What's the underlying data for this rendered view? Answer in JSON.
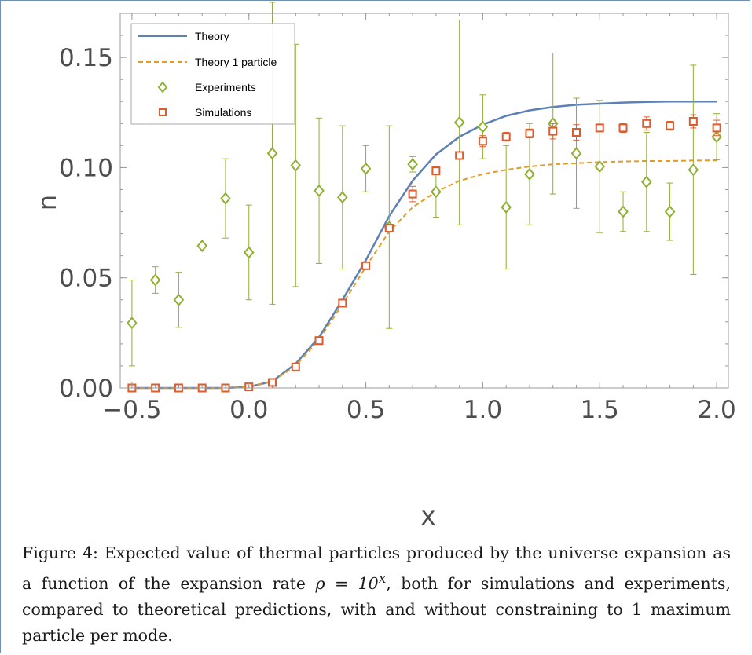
{
  "chart_data": {
    "type": "scatter",
    "xlabel": "x",
    "ylabel": "n",
    "xlim": [
      -0.55,
      2.05
    ],
    "ylim": [
      0.0,
      0.17
    ],
    "x_ticks": [
      "−0.5",
      "0.0",
      "0.5",
      "1.0",
      "1.5",
      "2.0"
    ],
    "x_tick_values": [
      -0.5,
      0.0,
      0.5,
      1.0,
      1.5,
      2.0
    ],
    "y_ticks": [
      "0.00",
      "0.05",
      "0.10",
      "0.15"
    ],
    "y_tick_values": [
      0.0,
      0.05,
      0.1,
      0.15
    ],
    "legend_position": "top-left",
    "grid": false,
    "series": [
      {
        "name": "Theory",
        "kind": "line",
        "style": "solid",
        "color": "#5e81b5",
        "x": [
          -0.5,
          -0.4,
          -0.3,
          -0.2,
          -0.1,
          0.0,
          0.1,
          0.2,
          0.3,
          0.4,
          0.5,
          0.6,
          0.7,
          0.8,
          0.9,
          1.0,
          1.1,
          1.2,
          1.3,
          1.4,
          1.5,
          1.6,
          1.7,
          1.8,
          1.9,
          2.0
        ],
        "y": [
          0.0,
          0.0,
          0.0,
          0.0,
          0.0,
          0.0005,
          0.003,
          0.011,
          0.023,
          0.04,
          0.058,
          0.078,
          0.094,
          0.106,
          0.114,
          0.1195,
          0.1235,
          0.126,
          0.1275,
          0.1285,
          0.129,
          0.1295,
          0.1298,
          0.13,
          0.13,
          0.13
        ]
      },
      {
        "name": "Theory 1 particle",
        "kind": "line",
        "style": "dashed",
        "color": "#e19c24",
        "x": [
          -0.5,
          -0.4,
          -0.3,
          -0.2,
          -0.1,
          0.0,
          0.1,
          0.2,
          0.3,
          0.4,
          0.5,
          0.6,
          0.7,
          0.8,
          0.9,
          1.0,
          1.1,
          1.2,
          1.3,
          1.4,
          1.5,
          1.6,
          1.7,
          1.8,
          1.9,
          2.0
        ],
        "y": [
          0.0,
          0.0,
          0.0,
          0.0,
          0.0,
          0.0005,
          0.003,
          0.01,
          0.022,
          0.038,
          0.055,
          0.071,
          0.082,
          0.089,
          0.094,
          0.097,
          0.099,
          0.1005,
          0.1015,
          0.102,
          0.1025,
          0.1028,
          0.103,
          0.103,
          0.1032,
          0.1033
        ]
      },
      {
        "name": "Experiments",
        "kind": "scatter",
        "marker": "diamond",
        "color": "#8fb032",
        "x": [
          -0.5,
          -0.4,
          -0.3,
          -0.2,
          -0.1,
          0.0,
          0.1,
          0.2,
          0.3,
          0.4,
          0.5,
          0.6,
          0.7,
          0.8,
          0.9,
          1.0,
          1.1,
          1.2,
          1.3,
          1.4,
          1.5,
          1.6,
          1.7,
          1.8,
          1.9,
          2.0
        ],
        "y": [
          0.0295,
          0.049,
          0.04,
          0.0645,
          0.086,
          0.0615,
          0.1065,
          0.101,
          0.0895,
          0.0865,
          0.0995,
          0.073,
          0.1015,
          0.089,
          0.1205,
          0.1185,
          0.082,
          0.097,
          0.12,
          0.1065,
          0.1005,
          0.08,
          0.0935,
          0.08,
          0.099,
          0.114
        ],
        "err": [
          0.0195,
          0.006,
          0.0125,
          0.0,
          0.018,
          0.0215,
          0.0685,
          0.055,
          0.033,
          0.0325,
          0.0105,
          0.046,
          0.0035,
          0.0115,
          0.0465,
          0.0145,
          0.028,
          0.023,
          0.032,
          0.025,
          0.03,
          0.009,
          0.0225,
          0.013,
          0.0475,
          0.0105
        ]
      },
      {
        "name": "Simulations",
        "kind": "scatter",
        "marker": "square",
        "color": "#e05a2b",
        "x": [
          -0.5,
          -0.4,
          -0.3,
          -0.2,
          -0.1,
          0.0,
          0.1,
          0.2,
          0.3,
          0.4,
          0.5,
          0.6,
          0.7,
          0.8,
          0.9,
          1.0,
          1.1,
          1.2,
          1.3,
          1.4,
          1.5,
          1.6,
          1.7,
          1.8,
          1.9,
          2.0
        ],
        "y": [
          0.0,
          0.0,
          0.0,
          0.0,
          0.0,
          0.0005,
          0.0025,
          0.0095,
          0.0215,
          0.0385,
          0.0555,
          0.0725,
          0.088,
          0.0985,
          0.1055,
          0.112,
          0.114,
          0.1155,
          0.1165,
          0.116,
          0.118,
          0.118,
          0.12,
          0.119,
          0.121,
          0.118
        ],
        "err": [
          0.0,
          0.0,
          0.0,
          0.0,
          0.0,
          0.0,
          0.0,
          0.0,
          0.0,
          0.0,
          0.0,
          0.0,
          0.0035,
          0.0,
          0.0,
          0.0025,
          0.002,
          0.002,
          0.0035,
          0.0035,
          0.0,
          0.002,
          0.003,
          0.002,
          0.003,
          0.0035
        ]
      }
    ]
  },
  "caption": {
    "prefix": "Figure 4: Expected value of thermal particles produced by the universe expansion as a function of the expansion rate ",
    "math": "ρ = 10",
    "math_exp": "x",
    "suffix": ", both for simulations and experiments, compared to theoretical predictions, with and without constraining to 1 maximum particle per mode."
  }
}
